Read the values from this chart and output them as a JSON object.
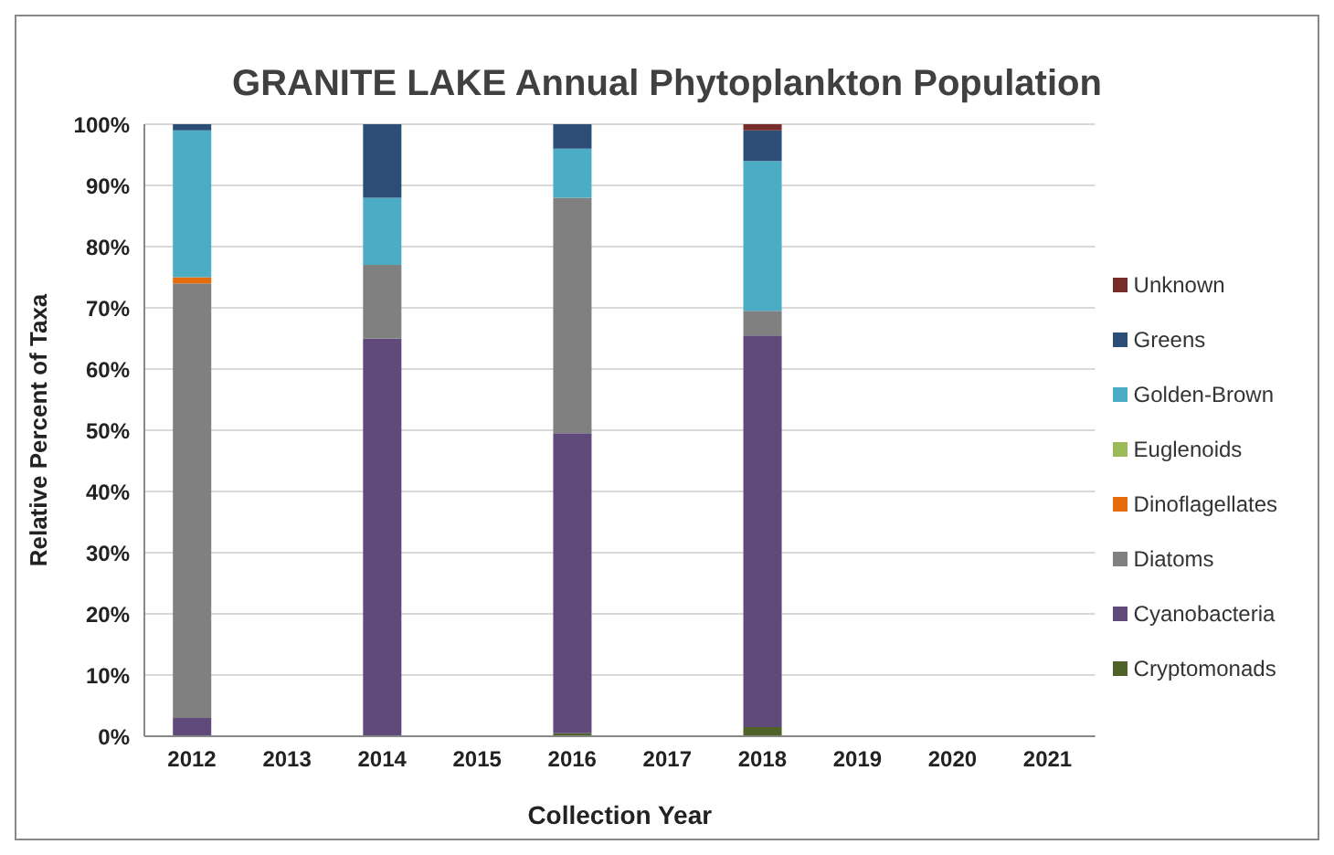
{
  "chart_data": {
    "type": "bar",
    "title": "GRANITE LAKE Annual Phytoplankton Population",
    "xlabel": "Collection Year",
    "ylabel": "Relative Percent of Taxa",
    "stacked": true,
    "categories": [
      "2012",
      "2013",
      "2014",
      "2015",
      "2016",
      "2017",
      "2018",
      "2019",
      "2020",
      "2021"
    ],
    "series": [
      {
        "name": "Cryptomonads",
        "color": "#4f6228",
        "values": [
          0,
          null,
          0,
          null,
          0.5,
          null,
          1.5,
          null,
          null,
          null
        ]
      },
      {
        "name": "Cyanobacteria",
        "color": "#604a7b",
        "values": [
          3,
          null,
          65,
          null,
          49,
          null,
          64,
          null,
          null,
          null
        ]
      },
      {
        "name": "Diatoms",
        "color": "#808080",
        "values": [
          71,
          null,
          12,
          null,
          38.5,
          null,
          4,
          null,
          null,
          null
        ]
      },
      {
        "name": "Dinoflagellates",
        "color": "#e46c0a",
        "values": [
          1,
          null,
          0,
          null,
          0,
          null,
          0,
          null,
          null,
          null
        ]
      },
      {
        "name": "Euglenoids",
        "color": "#9bbb59",
        "values": [
          0,
          null,
          0,
          null,
          0,
          null,
          0,
          null,
          null,
          null
        ]
      },
      {
        "name": "Golden-Brown",
        "color": "#4bacc6",
        "values": [
          24,
          null,
          11,
          null,
          8,
          null,
          24.5,
          null,
          null,
          null
        ]
      },
      {
        "name": "Greens",
        "color": "#2c4d75",
        "values": [
          1,
          null,
          12,
          null,
          4,
          null,
          5,
          null,
          null,
          null
        ]
      },
      {
        "name": "Unknown",
        "color": "#772c2a",
        "values": [
          0,
          null,
          0,
          null,
          0,
          null,
          1,
          null,
          null,
          null
        ]
      }
    ],
    "ylim": [
      0,
      100
    ],
    "yticks": [
      {
        "value": 0,
        "label": "0%"
      },
      {
        "value": 10,
        "label": "10%"
      },
      {
        "value": 20,
        "label": "20%"
      },
      {
        "value": 30,
        "label": "30%"
      },
      {
        "value": 40,
        "label": "40%"
      },
      {
        "value": 50,
        "label": "50%"
      },
      {
        "value": 60,
        "label": "60%"
      },
      {
        "value": 70,
        "label": "70%"
      },
      {
        "value": 80,
        "label": "80%"
      },
      {
        "value": 90,
        "label": "90%"
      },
      {
        "value": 100,
        "label": "100%"
      }
    ],
    "grid": "y",
    "legend": "right"
  }
}
